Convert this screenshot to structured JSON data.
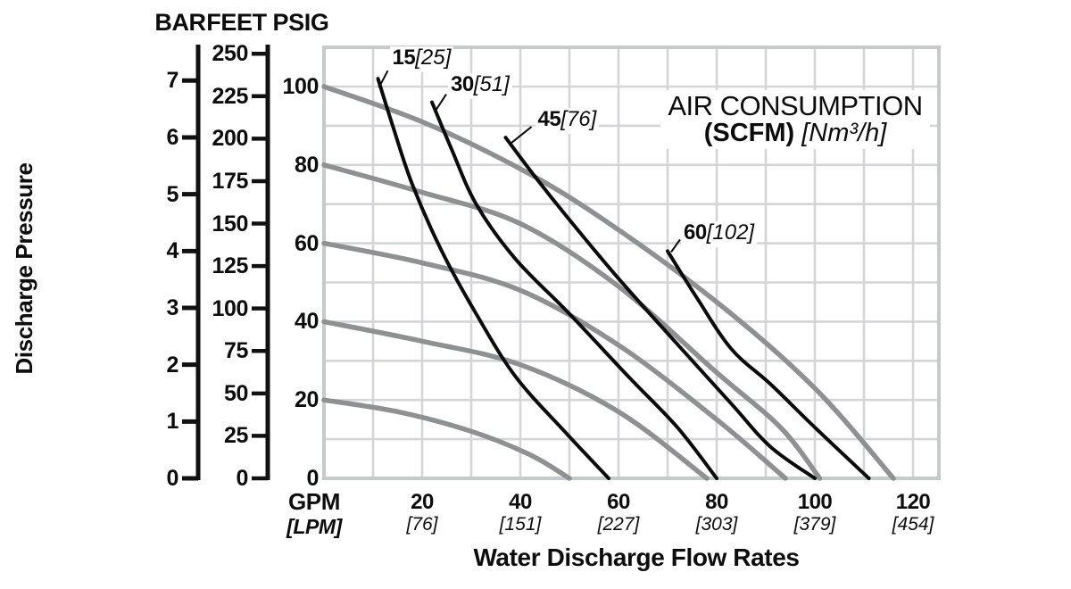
{
  "chart_data": {
    "type": "line",
    "title": {
      "line1": "AIR CONSUMPTION",
      "line2_bold": "(SCFM)",
      "line2_italic": "[Nm³/h]"
    },
    "x_axis": {
      "title": "Water Discharge Flow Rates",
      "unit_primary": "GPM",
      "unit_secondary": "[LPM]",
      "range_gpm": [
        0,
        125
      ],
      "ticks": [
        {
          "gpm": "20",
          "lpm": "[76]"
        },
        {
          "gpm": "40",
          "lpm": "[151]"
        },
        {
          "gpm": "60",
          "lpm": "[227]"
        },
        {
          "gpm": "80",
          "lpm": "[303]"
        },
        {
          "gpm": "100",
          "lpm": "[379]"
        },
        {
          "gpm": "120",
          "lpm": "[454]"
        }
      ]
    },
    "y_axes": {
      "label": "Discharge Pressure",
      "range_psig": [
        0,
        110
      ],
      "bar": {
        "header": "BAR",
        "ticks": [
          7,
          6,
          5,
          4,
          3,
          2,
          1,
          0
        ]
      },
      "feet": {
        "header": "FEET",
        "ticks": [
          250,
          225,
          200,
          175,
          150,
          125,
          100,
          75,
          50,
          25,
          0
        ]
      },
      "psig": {
        "header": "PSIG",
        "ticks": [
          100,
          80,
          60,
          40,
          20,
          0
        ]
      }
    },
    "grid": "on",
    "legend": "none",
    "pump_curves": [
      {
        "name": "curve-100-psig",
        "shutoff_psig": 100,
        "points_gpm_psig": [
          [
            0,
            100
          ],
          [
            20,
            91
          ],
          [
            40,
            79
          ],
          [
            57,
            66
          ],
          [
            80,
            45
          ],
          [
            100,
            23
          ],
          [
            116,
            0
          ]
        ]
      },
      {
        "name": "curve-80-psig",
        "shutoff_psig": 80,
        "points_gpm_psig": [
          [
            0,
            80
          ],
          [
            20,
            73
          ],
          [
            40,
            65
          ],
          [
            60,
            49
          ],
          [
            80,
            27
          ],
          [
            93,
            13
          ],
          [
            101,
            0
          ]
        ]
      },
      {
        "name": "curve-60-psig",
        "shutoff_psig": 60,
        "points_gpm_psig": [
          [
            0,
            60
          ],
          [
            20,
            55
          ],
          [
            40,
            48
          ],
          [
            60,
            34
          ],
          [
            80,
            15
          ],
          [
            94,
            0
          ]
        ]
      },
      {
        "name": "curve-40-psig",
        "shutoff_psig": 40,
        "points_gpm_psig": [
          [
            0,
            40
          ],
          [
            20,
            35
          ],
          [
            40,
            29
          ],
          [
            60,
            17
          ],
          [
            78,
            0
          ]
        ]
      },
      {
        "name": "curve-20-psig",
        "shutoff_psig": 20,
        "points_gpm_psig": [
          [
            0,
            20
          ],
          [
            15,
            17
          ],
          [
            30,
            12
          ],
          [
            42,
            6
          ],
          [
            50,
            0
          ]
        ]
      }
    ],
    "air_lines": [
      {
        "name": "air-line-15",
        "label_scfm": "15",
        "label_nm3h": "[25]",
        "points_gpm_psig": [
          [
            11,
            102
          ],
          [
            14,
            90
          ],
          [
            18,
            75
          ],
          [
            24,
            58
          ],
          [
            31,
            42
          ],
          [
            39,
            26
          ],
          [
            49,
            12
          ],
          [
            58,
            0
          ]
        ]
      },
      {
        "name": "air-line-30",
        "label_scfm": "30",
        "label_nm3h": "[51]",
        "points_gpm_psig": [
          [
            22,
            96
          ],
          [
            26,
            84
          ],
          [
            31,
            70
          ],
          [
            39,
            56
          ],
          [
            50,
            42
          ],
          [
            62,
            26
          ],
          [
            72,
            13
          ],
          [
            80,
            0
          ]
        ]
      },
      {
        "name": "air-line-45",
        "label_scfm": "45",
        "label_nm3h": "[76]",
        "points_gpm_psig": [
          [
            37,
            87
          ],
          [
            43,
            77
          ],
          [
            50,
            66
          ],
          [
            60,
            51
          ],
          [
            70,
            37
          ],
          [
            83,
            19
          ],
          [
            91,
            8
          ],
          [
            100,
            0
          ]
        ]
      },
      {
        "name": "air-line-60",
        "label_scfm": "60",
        "label_nm3h": "[102]",
        "points_gpm_psig": [
          [
            70,
            58
          ],
          [
            76,
            46
          ],
          [
            83,
            33
          ],
          [
            91,
            24
          ],
          [
            100,
            13
          ],
          [
            111,
            0
          ]
        ]
      }
    ],
    "colors": {
      "pump_curve": "#8e9092",
      "air_line": "#0b0b0b",
      "grid": "#d3d5d7",
      "grid_border": "#c7cacc",
      "axis": "#111111",
      "text": "#0d0d0d",
      "background": "#ffffff"
    }
  }
}
